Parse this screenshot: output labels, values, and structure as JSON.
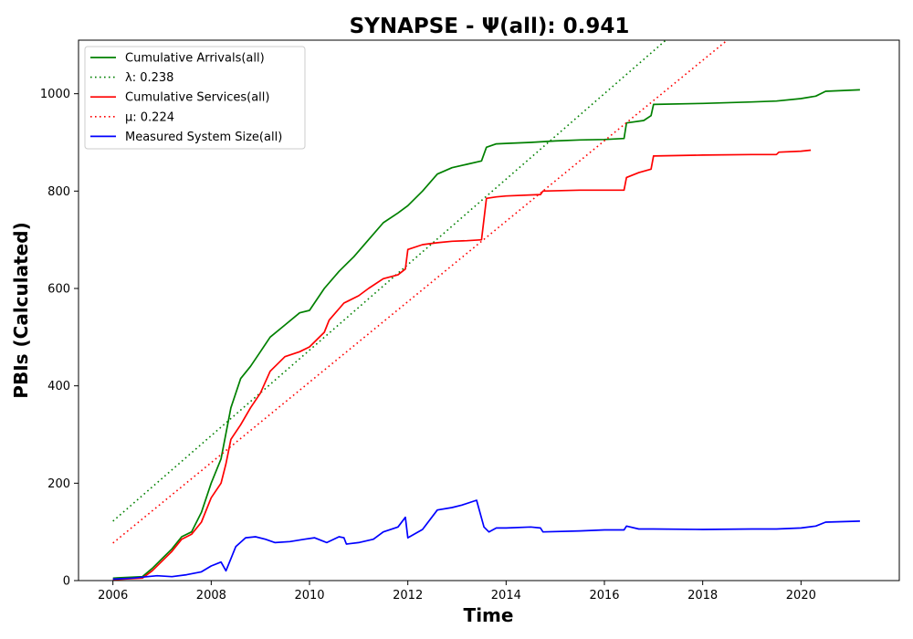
{
  "chart_data": {
    "type": "line",
    "title": "SYNAPSE -  Ψ(all): 0.941",
    "xlabel": "Time",
    "ylabel": "PBIs (Calculated)",
    "xlim": [
      2005.3,
      2022.0
    ],
    "ylim": [
      0,
      1110
    ],
    "x_ticks": [
      2006,
      2008,
      2010,
      2012,
      2014,
      2016,
      2018,
      2020
    ],
    "x_tick_labels": [
      "2006",
      "2008",
      "2010",
      "2012",
      "2014",
      "2016",
      "2018",
      "2020"
    ],
    "y_ticks": [
      0,
      200,
      400,
      600,
      800,
      1000
    ],
    "y_tick_labels": [
      "0",
      "200",
      "400",
      "600",
      "800",
      "1000"
    ],
    "grid": false,
    "legend_position": "top-left",
    "series": [
      {
        "name": "Cumulative Arrivals(all)",
        "color": "#008000",
        "style": "solid",
        "x": [
          2006.0,
          2006.6,
          2006.8,
          2007.0,
          2007.2,
          2007.4,
          2007.6,
          2007.8,
          2008.0,
          2008.2,
          2008.4,
          2008.6,
          2008.8,
          2009.0,
          2009.2,
          2009.5,
          2009.8,
          2010.0,
          2010.3,
          2010.6,
          2010.9,
          2011.2,
          2011.5,
          2011.8,
          2012.0,
          2012.3,
          2012.6,
          2012.9,
          2013.2,
          2013.5,
          2013.6,
          2013.8,
          2014.0,
          2014.5,
          2015.0,
          2015.5,
          2016.0,
          2016.4,
          2016.45,
          2016.8,
          2016.95,
          2017.0,
          2018.0,
          2019.0,
          2019.5,
          2020.0,
          2020.3,
          2020.5,
          2021.2
        ],
        "y": [
          5,
          8,
          25,
          45,
          65,
          90,
          100,
          140,
          200,
          250,
          355,
          415,
          440,
          470,
          500,
          525,
          550,
          555,
          600,
          635,
          665,
          700,
          735,
          755,
          770,
          800,
          835,
          848,
          855,
          862,
          890,
          897,
          898,
          900,
          903,
          905,
          906,
          908,
          940,
          945,
          955,
          978,
          980,
          983,
          985,
          990,
          995,
          1005,
          1008
        ]
      },
      {
        "name": "λ: 0.238",
        "color": "#008000",
        "style": "dotted",
        "x": [
          2006.0,
          2017.25
        ],
        "y": [
          122,
          1110
        ]
      },
      {
        "name": "Cumulative Services(all)",
        "color": "#ff0000",
        "style": "solid",
        "x": [
          2006.0,
          2006.6,
          2006.8,
          2007.0,
          2007.2,
          2007.4,
          2007.6,
          2007.8,
          2008.0,
          2008.2,
          2008.3,
          2008.4,
          2008.6,
          2008.8,
          2009.0,
          2009.2,
          2009.5,
          2009.8,
          2010.0,
          2010.3,
          2010.4,
          2010.7,
          2011.0,
          2011.2,
          2011.5,
          2011.8,
          2011.95,
          2012.0,
          2012.3,
          2012.6,
          2012.9,
          2013.2,
          2013.5,
          2013.6,
          2013.8,
          2014.0,
          2014.7,
          2014.75,
          2015.5,
          2016.4,
          2016.45,
          2016.7,
          2016.95,
          2017.0,
          2018.0,
          2019.0,
          2019.5,
          2019.55,
          2020.0,
          2020.2
        ],
        "y": [
          2,
          5,
          20,
          40,
          60,
          85,
          95,
          120,
          170,
          200,
          240,
          290,
          320,
          355,
          385,
          430,
          460,
          470,
          480,
          510,
          535,
          570,
          585,
          600,
          620,
          628,
          640,
          680,
          690,
          694,
          697,
          698,
          700,
          785,
          788,
          790,
          793,
          800,
          802,
          802,
          828,
          838,
          845,
          872,
          874,
          875,
          875,
          880,
          882,
          884
        ]
      },
      {
        "name": "μ: 0.224",
        "color": "#ff0000",
        "style": "dotted",
        "x": [
          2006.0,
          2018.5
        ],
        "y": [
          77,
          1110
        ]
      },
      {
        "name": "Measured System Size(all)",
        "color": "#0000ff",
        "style": "solid",
        "x": [
          2006.0,
          2006.4,
          2006.7,
          2006.9,
          2007.2,
          2007.5,
          2007.8,
          2008.0,
          2008.2,
          2008.3,
          2008.5,
          2008.7,
          2008.9,
          2009.1,
          2009.3,
          2009.6,
          2009.9,
          2010.1,
          2010.3,
          2010.35,
          2010.6,
          2010.7,
          2010.75,
          2011.0,
          2011.3,
          2011.5,
          2011.8,
          2011.95,
          2012.0,
          2012.3,
          2012.6,
          2012.9,
          2013.1,
          2013.4,
          2013.55,
          2013.65,
          2013.8,
          2014.0,
          2014.5,
          2014.7,
          2014.75,
          2015.5,
          2016.0,
          2016.4,
          2016.45,
          2016.7,
          2017.0,
          2018.0,
          2019.0,
          2019.5,
          2020.0,
          2020.3,
          2020.5,
          2021.2
        ],
        "y": [
          3,
          5,
          8,
          10,
          8,
          12,
          18,
          30,
          38,
          20,
          70,
          88,
          90,
          85,
          78,
          80,
          85,
          88,
          80,
          78,
          90,
          88,
          75,
          78,
          85,
          100,
          110,
          130,
          88,
          105,
          145,
          150,
          155,
          165,
          110,
          100,
          108,
          108,
          110,
          108,
          100,
          102,
          104,
          104,
          112,
          106,
          106,
          105,
          106,
          106,
          108,
          112,
          120,
          122
        ]
      }
    ]
  }
}
